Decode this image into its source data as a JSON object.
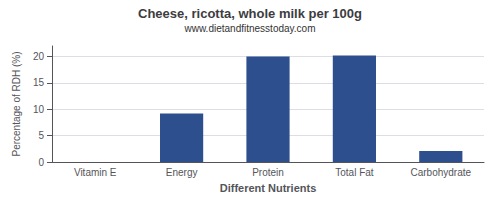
{
  "chart_data": {
    "type": "bar",
    "title": "Cheese, ricotta, whole milk per 100g",
    "subtitle": "www.dietandfitnesstoday.com",
    "xlabel": "Different Nutrients",
    "ylabel": "Percentage of RDH (%)",
    "categories": [
      "Vitamin E",
      "Energy",
      "Protein",
      "Total Fat",
      "Carbohydrate"
    ],
    "values": [
      0,
      9.2,
      20.0,
      20.2,
      2.1
    ],
    "color": "#2d4f8e",
    "ylim": [
      0,
      22
    ],
    "yticks": [
      0,
      5,
      10,
      15,
      20
    ],
    "grid": true
  }
}
